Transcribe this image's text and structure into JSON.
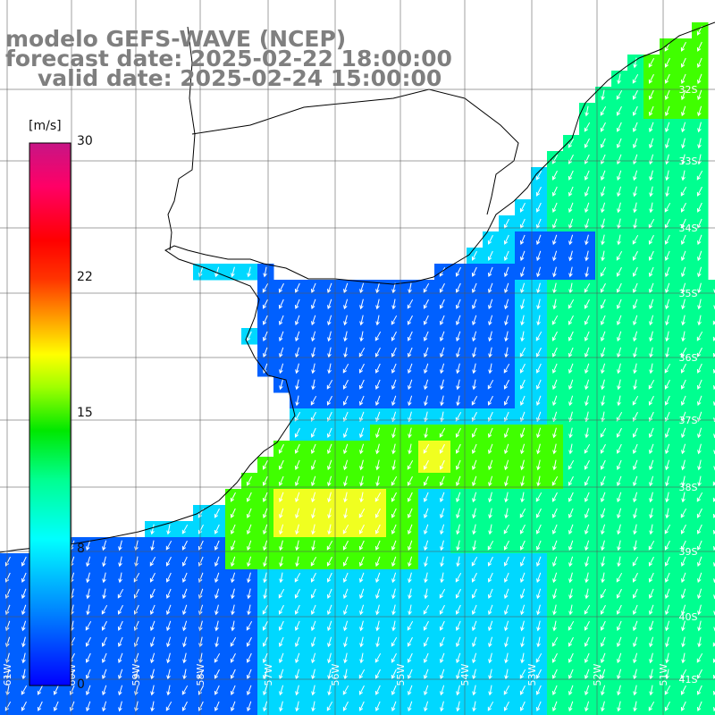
{
  "title": {
    "model": "modelo GEFS-WAVE (NCEP)",
    "forecast": "forecast date: 2025-02-22 18:00:00",
    "valid": "valid date: 2025-02-24 15:00:00"
  },
  "colorbar": {
    "unit": "[m/s]",
    "ticks": [
      "30",
      "22",
      "15",
      "8",
      "0"
    ],
    "tick_values": [
      30,
      22,
      15,
      8,
      0
    ],
    "range": [
      0,
      30
    ],
    "stops": [
      "#0000ff",
      "#00aaff",
      "#00ffff",
      "#00ff80",
      "#00e000",
      "#80ff00",
      "#ffff00",
      "#ffa500",
      "#ff4500",
      "#ff0000",
      "#ff0080",
      "#c71585"
    ]
  },
  "map": {
    "lat_labels": [
      "32S",
      "33S",
      "34S",
      "35S",
      "36S",
      "37S",
      "38S",
      "39S",
      "40S",
      "41S"
    ],
    "lon_labels": [
      "61W",
      "60W",
      "59W",
      "58W",
      "57W",
      "56W",
      "55W",
      "54W",
      "53W",
      "52W",
      "51W"
    ],
    "ocean_colors": {
      "calm": "#0060ff",
      "moderate": "#00d8ff",
      "fresh": "#00ff90",
      "strong": "#40ff00",
      "peak": "#f0ff20"
    }
  }
}
